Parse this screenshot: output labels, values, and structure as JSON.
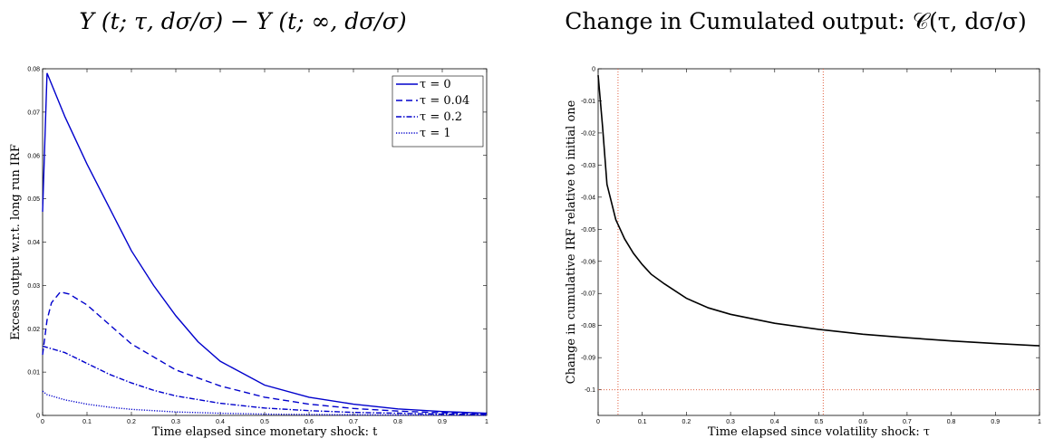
{
  "titles": {
    "left": "Y (t; τ, dσ/σ) − Y (t; ∞, dσ/σ)",
    "right": "Change in Cumulated output: 𝒞(τ, dσ/σ)"
  },
  "chart_data": [
    {
      "type": "line",
      "xlabel": "Time elapsed since monetary shock: t",
      "ylabel": "Excess output w.r.t. long run IRF",
      "xlim": [
        0,
        1
      ],
      "ylim": [
        0,
        0.08
      ],
      "xticks": [
        "0",
        "0.1",
        "0.2",
        "0.3",
        "0.4",
        "0.5",
        "0.6",
        "0.7",
        "0.8",
        "0.9",
        "1"
      ],
      "yticks": [
        "0",
        "0.01",
        "0.02",
        "0.03",
        "0.04",
        "0.05",
        "0.06",
        "0.07",
        "0.08"
      ],
      "grid": false,
      "legend_position": "top-right",
      "colors": {
        "series": "#0000cc",
        "axis": "#000000"
      },
      "series": [
        {
          "name": "τ = 0",
          "style": "solid",
          "x": [
            0,
            0.01,
            0.05,
            0.1,
            0.15,
            0.2,
            0.25,
            0.3,
            0.35,
            0.4,
            0.5,
            0.6,
            0.7,
            0.8,
            0.9,
            1.0
          ],
          "y": [
            0.047,
            0.079,
            0.069,
            0.058,
            0.048,
            0.038,
            0.03,
            0.023,
            0.017,
            0.0125,
            0.007,
            0.0042,
            0.0026,
            0.0015,
            0.0009,
            0.0005
          ]
        },
        {
          "name": "τ = 0.04",
          "style": "dashed",
          "x": [
            0,
            0.01,
            0.02,
            0.04,
            0.06,
            0.1,
            0.15,
            0.2,
            0.3,
            0.4,
            0.5,
            0.6,
            0.7,
            0.8,
            0.9,
            1.0
          ],
          "y": [
            0.014,
            0.022,
            0.026,
            0.0285,
            0.028,
            0.0255,
            0.021,
            0.0165,
            0.0105,
            0.0068,
            0.0042,
            0.0026,
            0.0016,
            0.001,
            0.0006,
            0.0004
          ]
        },
        {
          "name": "τ = 0.2",
          "style": "dashdot",
          "x": [
            0,
            0.05,
            0.1,
            0.15,
            0.2,
            0.25,
            0.3,
            0.4,
            0.5,
            0.6,
            0.7,
            0.8,
            0.9,
            1.0
          ],
          "y": [
            0.016,
            0.0145,
            0.012,
            0.0095,
            0.0075,
            0.0058,
            0.0045,
            0.0028,
            0.0017,
            0.0011,
            0.0007,
            0.0005,
            0.0003,
            0.0002
          ]
        },
        {
          "name": "τ = 1",
          "style": "dotted",
          "x": [
            0,
            0.01,
            0.03,
            0.05,
            0.1,
            0.15,
            0.2,
            0.3,
            0.4,
            0.5,
            0.6,
            0.8,
            1.0
          ],
          "y": [
            0.0056,
            0.0048,
            0.0042,
            0.0036,
            0.0026,
            0.0019,
            0.0014,
            0.0008,
            0.0005,
            0.0003,
            0.0002,
            0.0001,
            5e-05
          ]
        }
      ]
    },
    {
      "type": "line",
      "xlabel": "Time elapsed since volatility shock: τ",
      "ylabel": "Change in cumulative IRF relative to initial one",
      "xlim": [
        0,
        1
      ],
      "ylim": [
        -0.108,
        0
      ],
      "xticks": [
        "0",
        "0.1",
        "0.2",
        "0.3",
        "0.4",
        "0.5",
        "0.6",
        "0.7",
        "0.8",
        "0.9",
        "1"
      ],
      "yticks": [
        "0",
        "-0.01",
        "-0.02",
        "-0.03",
        "-0.04",
        "-0.05",
        "-0.06",
        "-0.07",
        "-0.08",
        "-0.09",
        "-0.1"
      ],
      "grid": false,
      "colors": {
        "series": "#000000",
        "reference_lines": "#e06040"
      },
      "series": [
        {
          "style": "solid",
          "x": [
            0,
            0.01,
            0.02,
            0.04,
            0.06,
            0.08,
            0.1,
            0.12,
            0.15,
            0.2,
            0.25,
            0.3,
            0.4,
            0.5,
            0.6,
            0.7,
            0.8,
            0.9,
            1.0
          ],
          "y": [
            -0.002,
            -0.018,
            -0.036,
            -0.047,
            -0.053,
            -0.0575,
            -0.061,
            -0.064,
            -0.067,
            -0.0715,
            -0.0745,
            -0.0765,
            -0.0793,
            -0.0812,
            -0.0827,
            -0.0838,
            -0.0848,
            -0.0856,
            -0.0863
          ]
        }
      ],
      "reference_lines": {
        "vertical_x": [
          0.045,
          0.51
        ],
        "horizontal_y": [
          -0.1
        ]
      }
    }
  ]
}
